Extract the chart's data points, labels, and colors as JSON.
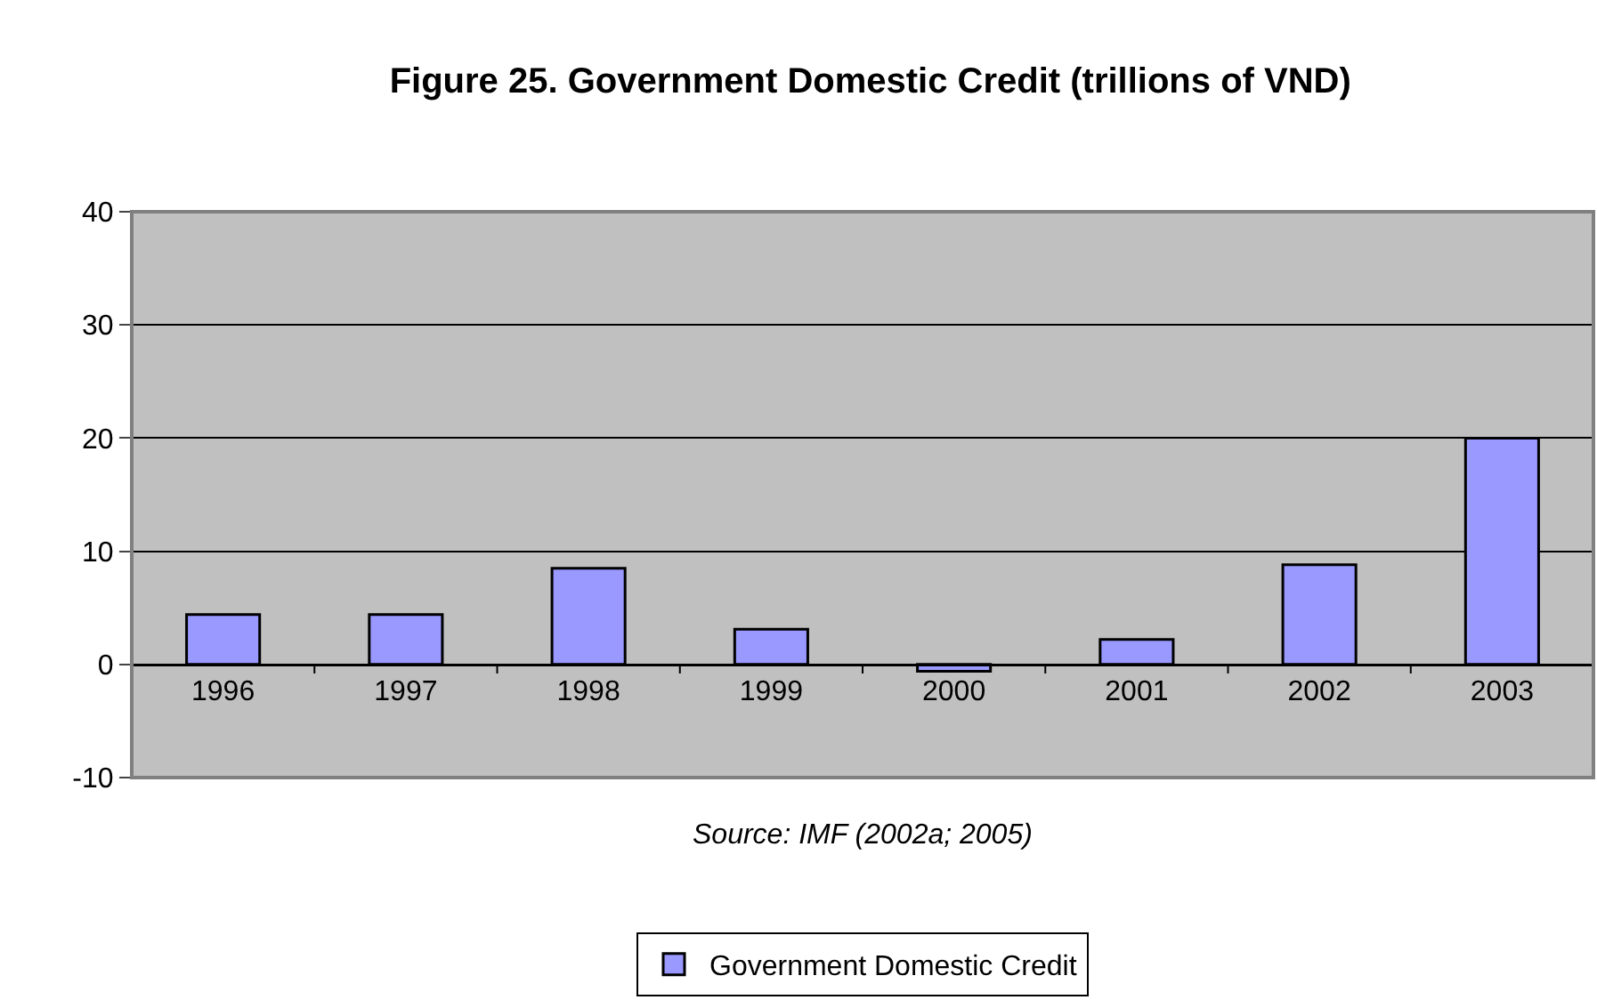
{
  "chart_data": {
    "type": "bar",
    "title": "Figure 25. Government Domestic Credit (trillions of VND)",
    "categories": [
      "1996",
      "1997",
      "1998",
      "1999",
      "2000",
      "2001",
      "2002",
      "2003"
    ],
    "series": [
      {
        "name": "Government Domestic Credit",
        "color": "#9999ff",
        "values": [
          4.4,
          4.4,
          8.5,
          3.1,
          -0.6,
          2.2,
          8.8,
          20.0
        ]
      }
    ],
    "ylim": [
      -10,
      40
    ],
    "yticks": [
      -10,
      0,
      10,
      20,
      30,
      40
    ],
    "grid": "y",
    "legend": "bottom",
    "annotations": [
      "Source: IMF (2002a; 2005)"
    ]
  }
}
